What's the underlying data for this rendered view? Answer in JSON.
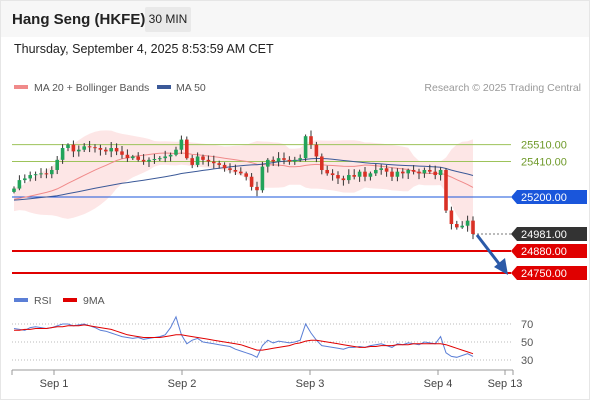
{
  "header": {
    "title": "Hang Seng (HKFE)",
    "interval": "30 MIN",
    "timestamp": "Thursday, September 4, 2025 8:53:59 AM CET"
  },
  "legend": {
    "ma20_bb": "MA 20 + Bollinger Bands",
    "ma50": "MA 50",
    "credit": "Research © 2025 Trading Central",
    "rsi": "RSI",
    "rsi_ma": "9MA"
  },
  "colors": {
    "bull": "#22a35a",
    "bear": "#d93025",
    "bb_fill": "#fde2e2",
    "ma20": "#f08a8a",
    "ma50": "#3b5998",
    "support": "#e00000",
    "pivot": "#1a56db",
    "resistance": "#9dc35a",
    "last_price": "#333333",
    "rsi": "#5b7fd6",
    "rsi_ma": "#e00000",
    "arrow": "#2b5aa8"
  },
  "chart_data": {
    "type": "candlestick",
    "price_axis": {
      "reference": [
        {
          "value": 25200,
          "y_anchor": true
        },
        {
          "value": 24750,
          "y_anchor": true
        }
      ]
    },
    "levels": [
      {
        "label": "25510.00",
        "value": 25510,
        "kind": "resistance"
      },
      {
        "label": "25410.00",
        "value": 25410,
        "kind": "resistance"
      },
      {
        "label": "25200.00",
        "value": 25200,
        "kind": "pivot"
      },
      {
        "label": "24981.00",
        "value": 24981,
        "kind": "last"
      },
      {
        "label": "24880.00",
        "value": 24880,
        "kind": "support"
      },
      {
        "label": "24750.00",
        "value": 24750,
        "kind": "support"
      }
    ],
    "x_labels": [
      "Sep 1",
      "Sep 2",
      "Sep 3",
      "Sep 4",
      "Sep 13"
    ],
    "closes": [
      25250,
      25300,
      25310,
      25330,
      25335,
      25340,
      25335,
      25360,
      25420,
      25490,
      25510,
      25470,
      25480,
      25500,
      25495,
      25490,
      25480,
      25470,
      25490,
      25470,
      25450,
      25430,
      25440,
      25420,
      25410,
      25420,
      25425,
      25430,
      25440,
      25450,
      25480,
      25540,
      25430,
      25390,
      25440,
      25420,
      25410,
      25400,
      25390,
      25370,
      25360,
      25350,
      25340,
      25320,
      25260,
      25240,
      25380,
      25420,
      25410,
      25430,
      25420,
      25410,
      25420,
      25430,
      25560,
      25510,
      25440,
      25360,
      25340,
      25330,
      25310,
      25300,
      25330,
      25320,
      25350,
      25320,
      25340,
      25360,
      25370,
      25350,
      25320,
      25350,
      25340,
      25360,
      25350,
      25340,
      25360,
      25350,
      25330,
      25360,
      25120,
      25040,
      25020,
      25030,
      25060,
      24981
    ],
    "rsi": {
      "ticks": [
        "70",
        "50",
        "30"
      ],
      "values": [
        65,
        64,
        63,
        66,
        67,
        66,
        65,
        66,
        68,
        70,
        70,
        68,
        69,
        70,
        68,
        66,
        63,
        62,
        60,
        58,
        56,
        55,
        54,
        55,
        53,
        54,
        55,
        56,
        58,
        66,
        78,
        58,
        48,
        52,
        54,
        50,
        49,
        48,
        47,
        46,
        45,
        42,
        40,
        38,
        36,
        33,
        46,
        52,
        49,
        51,
        50,
        49,
        50,
        52,
        70,
        60,
        52,
        46,
        45,
        44,
        43,
        42,
        44,
        44,
        45,
        44,
        46,
        47,
        48,
        46,
        44,
        48,
        47,
        49,
        48,
        47,
        50,
        49,
        48,
        56,
        38,
        34,
        33,
        35,
        37,
        34
      ],
      "ma9": [
        63,
        63,
        64,
        64,
        65,
        65,
        65,
        66,
        67,
        67,
        68,
        68,
        68,
        69,
        68,
        67,
        66,
        65,
        64,
        62,
        60,
        58,
        57,
        56,
        55,
        55,
        55,
        55,
        56,
        57,
        58,
        58,
        57,
        56,
        55,
        54,
        53,
        52,
        51,
        50,
        49,
        48,
        47,
        45,
        43,
        41,
        41,
        42,
        43,
        44,
        45,
        46,
        48,
        49,
        51,
        52,
        52,
        51,
        50,
        49,
        48,
        47,
        46,
        45,
        44,
        44,
        45,
        45,
        46,
        46,
        46,
        47,
        47,
        47,
        48,
        48,
        48,
        48,
        48,
        48,
        47,
        45,
        43,
        41,
        39,
        37
      ]
    }
  }
}
